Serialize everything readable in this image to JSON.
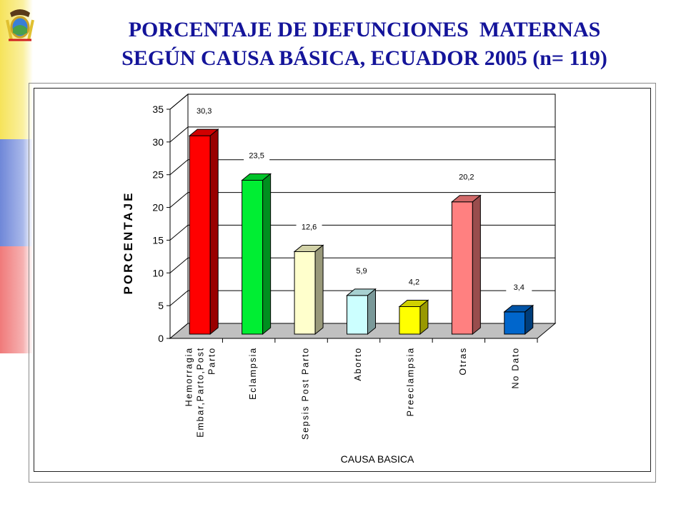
{
  "title": {
    "line1": "PORCENTAJE DE DEFUNCIONES  MATERNAS",
    "line2": "SEGÚN CAUSA BÁSICA, ECUADOR 2005 (n= 119)"
  },
  "colors": {
    "title": "#14149a",
    "flag_yellow": "#f6e35a",
    "flag_blue": "#6f87d8",
    "flag_red": "#f07a7a"
  },
  "chart_data": {
    "type": "bar",
    "xlabel": "CAUSA BASICA",
    "ylabel": "PORCENTAJE",
    "ylim": [
      0,
      35
    ],
    "yticks": [
      "0",
      "5",
      "10",
      "15",
      "20",
      "25",
      "30",
      "35"
    ],
    "grid": true,
    "categories": [
      [
        "Hemorragia",
        "Embar,Parto,Post",
        "Parto"
      ],
      [
        "Eclampsia"
      ],
      [
        "Sepsis Post Parto"
      ],
      [
        "Aborto"
      ],
      [
        "Preeclampsia"
      ],
      [
        "Otras"
      ],
      [
        "No Dato"
      ]
    ],
    "values": [
      30.3,
      23.5,
      12.6,
      5.9,
      4.2,
      20.2,
      3.4
    ],
    "value_labels": [
      "30,3",
      "23,5",
      "12,6",
      "5,9",
      "4,2",
      "20,2",
      "3,4"
    ],
    "bar_colors": [
      "#ff0000",
      "#00ee33",
      "#ffffcc",
      "#ccffff",
      "#ffff00",
      "#ff8080",
      "#0066cc"
    ]
  }
}
